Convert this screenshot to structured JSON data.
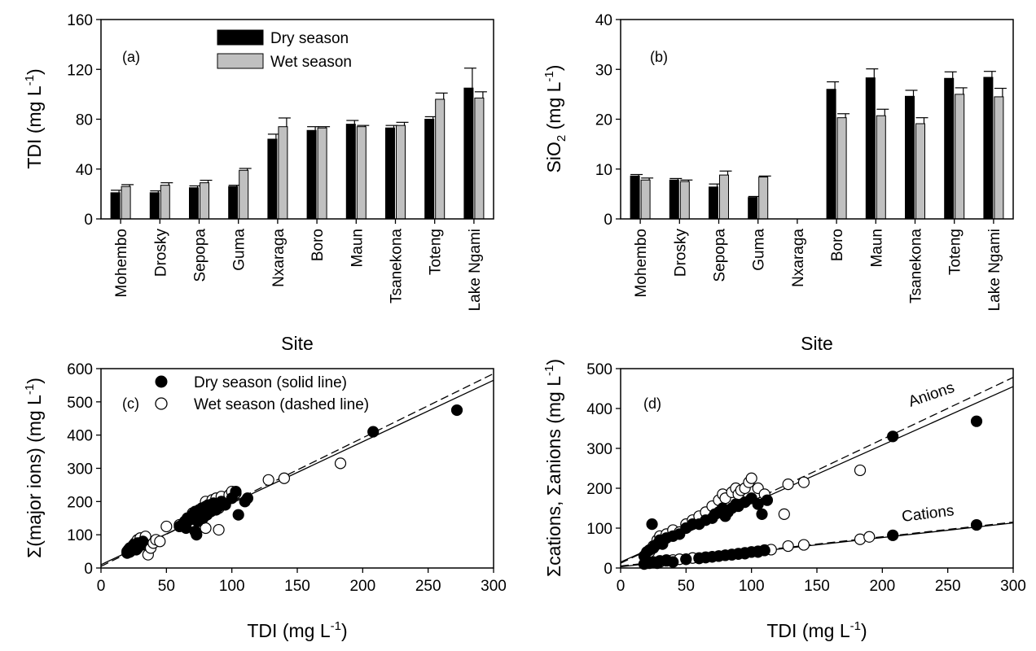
{
  "chart_data": [
    {
      "panel": "(a)",
      "type": "bar",
      "xlabel": "Site",
      "ylabel_base": "TDI (mg L",
      "ylabel_sup": "-1",
      "ylabel_end": ")",
      "ylim": [
        0,
        160
      ],
      "yticks": [
        0,
        40,
        80,
        120,
        160
      ],
      "categories": [
        "Mohembo",
        "Drosky",
        "Sepopa",
        "Guma",
        "Nxaraga",
        "Boro",
        "Maun",
        "Tsanekona",
        "Toteng",
        "Lake Ngami"
      ],
      "legend_position": "top-center",
      "series": [
        {
          "name": "Dry season",
          "color": "#000000",
          "values": [
            21,
            21,
            25,
            26,
            64,
            71,
            76,
            73,
            80,
            105
          ],
          "errors": [
            2,
            1.5,
            1.5,
            1,
            4,
            3,
            3,
            2,
            2,
            16
          ]
        },
        {
          "name": "Wet season",
          "color": "#c0c0c0",
          "values": [
            26,
            27,
            29,
            39,
            74,
            73,
            74,
            75,
            96,
            97
          ],
          "errors": [
            1.5,
            2,
            2,
            1.5,
            7,
            1,
            1,
            2.5,
            5,
            5
          ]
        }
      ]
    },
    {
      "panel": "(b)",
      "type": "bar",
      "xlabel": "Site",
      "ylabel_base": "SiO",
      "ylabel_sub": "2",
      "ylabel_mid": " (mg L",
      "ylabel_sup": "-1",
      "ylabel_end": ")",
      "ylim": [
        0,
        40
      ],
      "yticks": [
        0,
        10,
        20,
        30,
        40
      ],
      "categories": [
        "Mohembo",
        "Drosky",
        "Sepopa",
        "Guma",
        "Nxaraga",
        "Boro",
        "Maun",
        "Tsanekona",
        "Toteng",
        "Lake Ngami"
      ],
      "series": [
        {
          "name": "Dry season",
          "color": "#000000",
          "values": [
            8.6,
            7.8,
            6.4,
            4.3,
            null,
            26,
            28.3,
            24.6,
            28.2,
            28.4
          ],
          "errors": [
            0.3,
            0.3,
            0.6,
            0.2,
            null,
            1.5,
            1.8,
            1.2,
            1.3,
            1.2
          ]
        },
        {
          "name": "Wet season",
          "color": "#c0c0c0",
          "values": [
            7.8,
            7.5,
            8.8,
            8.4,
            null,
            20.3,
            20.7,
            19.1,
            25,
            24.5
          ],
          "errors": [
            0.4,
            0.3,
            0.8,
            0.2,
            null,
            0.8,
            1.3,
            1.2,
            1.3,
            1.7
          ]
        }
      ]
    },
    {
      "panel": "(c)",
      "type": "scatter",
      "xlabel_base": "TDI (mg L",
      "xlabel_sup": "-1",
      "xlabel_end": ")",
      "ylabel_base": "Σ(major ions) (mg L",
      "ylabel_sup": "-1",
      "ylabel_end": ")",
      "xlim": [
        0,
        300
      ],
      "ylim": [
        0,
        600
      ],
      "xticks": [
        0,
        50,
        100,
        150,
        200,
        250,
        300
      ],
      "yticks": [
        0,
        100,
        200,
        300,
        400,
        500,
        600
      ],
      "legend_position": "top-left",
      "series": [
        {
          "name": "Dry season  (solid line)",
          "marker": "filled",
          "points": [
            [
              20,
              50
            ],
            [
              21,
              55
            ],
            [
              22,
              60
            ],
            [
              23,
              52
            ],
            [
              24,
              58
            ],
            [
              25,
              62
            ],
            [
              25,
              70
            ],
            [
              26,
              65
            ],
            [
              27,
              55
            ],
            [
              28,
              75
            ],
            [
              30,
              68
            ],
            [
              32,
              80
            ],
            [
              20,
              45
            ],
            [
              22,
              48
            ],
            [
              28,
              60
            ],
            [
              60,
              125
            ],
            [
              62,
              130
            ],
            [
              64,
              140
            ],
            [
              65,
              120
            ],
            [
              66,
              150
            ],
            [
              68,
              145
            ],
            [
              70,
              160
            ],
            [
              71,
              150
            ],
            [
              72,
              170
            ],
            [
              72,
              110
            ],
            [
              73,
              100
            ],
            [
              74,
              140
            ],
            [
              75,
              175
            ],
            [
              76,
              160
            ],
            [
              77,
              180
            ],
            [
              78,
              150
            ],
            [
              79,
              170
            ],
            [
              80,
              185
            ],
            [
              81,
              160
            ],
            [
              82,
              175
            ],
            [
              83,
              190
            ],
            [
              84,
              170
            ],
            [
              85,
              180
            ],
            [
              86,
              195
            ],
            [
              88,
              175
            ],
            [
              90,
              185
            ],
            [
              92,
              200
            ],
            [
              95,
              190
            ],
            [
              100,
              210
            ],
            [
              103,
              230
            ],
            [
              105,
              160
            ],
            [
              110,
              200
            ],
            [
              112,
              210
            ],
            [
              208,
              410
            ],
            [
              272,
              475
            ]
          ],
          "fit": [
            [
              0,
              10
            ],
            [
              300,
              565
            ]
          ]
        },
        {
          "name": "Wet season (dashed line)",
          "marker": "open",
          "points": [
            [
              22,
              55
            ],
            [
              24,
              65
            ],
            [
              26,
              75
            ],
            [
              28,
              85
            ],
            [
              30,
              90
            ],
            [
              32,
              70
            ],
            [
              34,
              95
            ],
            [
              36,
              40
            ],
            [
              38,
              60
            ],
            [
              40,
              75
            ],
            [
              42,
              85
            ],
            [
              45,
              80
            ],
            [
              50,
              125
            ],
            [
              60,
              130
            ],
            [
              65,
              135
            ],
            [
              70,
              165
            ],
            [
              75,
              160
            ],
            [
              78,
              180
            ],
            [
              80,
              200
            ],
            [
              82,
              190
            ],
            [
              85,
              205
            ],
            [
              88,
              210
            ],
            [
              90,
              180
            ],
            [
              92,
              215
            ],
            [
              95,
              200
            ],
            [
              98,
              220
            ],
            [
              100,
              230
            ],
            [
              103,
              225
            ],
            [
              80,
              120
            ],
            [
              90,
              115
            ],
            [
              128,
              265
            ],
            [
              140,
              270
            ],
            [
              183,
              315
            ]
          ],
          "fit": [
            [
              0,
              5
            ],
            [
              300,
              585
            ]
          ]
        }
      ]
    },
    {
      "panel": "(d)",
      "type": "scatter",
      "xlabel_base": "TDI (mg L",
      "xlabel_sup": "-1",
      "xlabel_end": ")",
      "ylabel_base": "Σcations, Σanions (mg L",
      "ylabel_sup": "-1",
      "ylabel_end": ")",
      "xlim": [
        0,
        300
      ],
      "ylim": [
        0,
        500
      ],
      "xticks": [
        0,
        50,
        100,
        150,
        200,
        250,
        300
      ],
      "yticks": [
        0,
        100,
        200,
        300,
        400,
        500
      ],
      "annotations": [
        "Anions",
        "Cations"
      ],
      "series": [
        {
          "name": "Anions, dry season",
          "marker": "filled",
          "points": [
            [
              18,
              30
            ],
            [
              20,
              40
            ],
            [
              22,
              45
            ],
            [
              24,
              110
            ],
            [
              25,
              50
            ],
            [
              26,
              55
            ],
            [
              28,
              60
            ],
            [
              30,
              70
            ],
            [
              32,
              60
            ],
            [
              35,
              75
            ],
            [
              40,
              80
            ],
            [
              45,
              85
            ],
            [
              50,
              100
            ],
            [
              55,
              110
            ],
            [
              60,
              110
            ],
            [
              65,
              120
            ],
            [
              70,
              125
            ],
            [
              72,
              135
            ],
            [
              75,
              140
            ],
            [
              78,
              150
            ],
            [
              80,
              130
            ],
            [
              82,
              140
            ],
            [
              85,
              150
            ],
            [
              88,
              160
            ],
            [
              90,
              155
            ],
            [
              95,
              165
            ],
            [
              100,
              175
            ],
            [
              105,
              160
            ],
            [
              108,
              135
            ],
            [
              112,
              170
            ],
            [
              208,
              330
            ],
            [
              272,
              368
            ]
          ]
        },
        {
          "name": "Anions, wet season",
          "marker": "open",
          "points": [
            [
              22,
              40
            ],
            [
              25,
              55
            ],
            [
              28,
              70
            ],
            [
              30,
              80
            ],
            [
              35,
              85
            ],
            [
              40,
              95
            ],
            [
              45,
              90
            ],
            [
              50,
              110
            ],
            [
              55,
              120
            ],
            [
              60,
              130
            ],
            [
              65,
              140
            ],
            [
              70,
              155
            ],
            [
              75,
              170
            ],
            [
              78,
              185
            ],
            [
              80,
              175
            ],
            [
              85,
              190
            ],
            [
              88,
              200
            ],
            [
              90,
              185
            ],
            [
              92,
              195
            ],
            [
              95,
              200
            ],
            [
              98,
              215
            ],
            [
              100,
              225
            ],
            [
              105,
              200
            ],
            [
              110,
              185
            ],
            [
              125,
              135
            ],
            [
              128,
              210
            ],
            [
              140,
              215
            ],
            [
              183,
              245
            ]
          ]
        },
        {
          "name": "Cations, dry season",
          "marker": "filled",
          "points": [
            [
              18,
              10
            ],
            [
              20,
              12
            ],
            [
              22,
              14
            ],
            [
              25,
              15
            ],
            [
              28,
              12
            ],
            [
              30,
              18
            ],
            [
              35,
              20
            ],
            [
              40,
              15
            ],
            [
              50,
              22
            ],
            [
              60,
              25
            ],
            [
              65,
              27
            ],
            [
              70,
              28
            ],
            [
              75,
              30
            ],
            [
              80,
              32
            ],
            [
              85,
              34
            ],
            [
              90,
              36
            ],
            [
              95,
              38
            ],
            [
              100,
              40
            ],
            [
              105,
              40
            ],
            [
              110,
              44
            ],
            [
              208,
              82
            ],
            [
              272,
              108
            ]
          ]
        },
        {
          "name": "Cations, wet season",
          "marker": "open",
          "points": [
            [
              22,
              12
            ],
            [
              25,
              14
            ],
            [
              30,
              15
            ],
            [
              35,
              18
            ],
            [
              40,
              20
            ],
            [
              45,
              22
            ],
            [
              50,
              22
            ],
            [
              55,
              25
            ],
            [
              60,
              24
            ],
            [
              65,
              26
            ],
            [
              70,
              28
            ],
            [
              75,
              30
            ],
            [
              80,
              32
            ],
            [
              85,
              33
            ],
            [
              90,
              35
            ],
            [
              95,
              36
            ],
            [
              100,
              40
            ],
            [
              105,
              42
            ],
            [
              110,
              45
            ],
            [
              115,
              46
            ],
            [
              128,
              55
            ],
            [
              140,
              58
            ],
            [
              183,
              72
            ],
            [
              190,
              78
            ]
          ]
        }
      ],
      "fits": [
        {
          "name": "Anions solid",
          "dash": false,
          "line": [
            [
              0,
              15
            ],
            [
              300,
              455
            ]
          ]
        },
        {
          "name": "Anions dashed",
          "dash": true,
          "line": [
            [
              0,
              12
            ],
            [
              300,
              478
            ]
          ]
        },
        {
          "name": "Cations solid",
          "dash": false,
          "line": [
            [
              0,
              3
            ],
            [
              300,
              113
            ]
          ]
        },
        {
          "name": "Cations dashed",
          "dash": true,
          "line": [
            [
              0,
              5
            ],
            [
              300,
              115
            ]
          ]
        }
      ]
    }
  ]
}
